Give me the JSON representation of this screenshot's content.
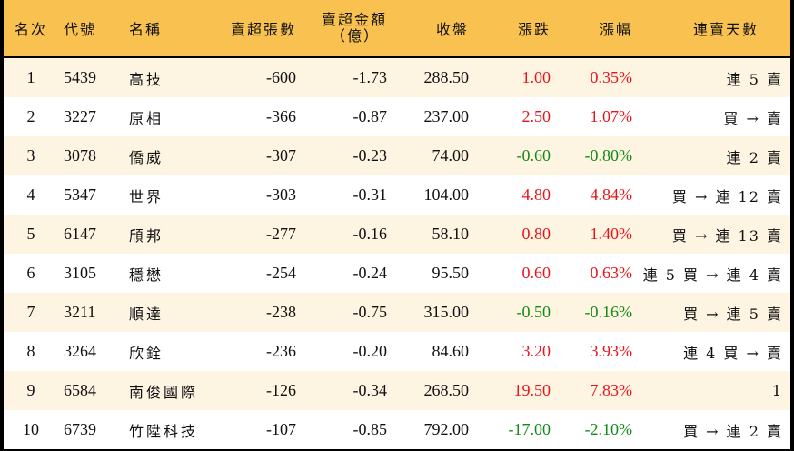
{
  "colors": {
    "header_bg": "#F8C150",
    "row_odd_bg": "#FEF4E2",
    "row_even_bg": "#FFFFFF",
    "up": "#E8141B",
    "down": "#138A17",
    "border": "#000000"
  },
  "header": {
    "rank": "名次",
    "code": "代號",
    "name": "名稱",
    "net_sell_volume": "賣超張數",
    "net_sell_amount_line1": "賣超金額",
    "net_sell_amount_line2": "（億）",
    "close": "收盤",
    "change": "漲跌",
    "change_pct": "漲幅",
    "streak": "連賣天數"
  },
  "rows": [
    {
      "rank": "1",
      "code": "5439",
      "name": "高技",
      "volume": "-600",
      "amount": "-1.73",
      "close": "288.50",
      "change": "1.00",
      "change_pct": "0.35%",
      "dir": "up",
      "streak": "連 5 賣"
    },
    {
      "rank": "2",
      "code": "3227",
      "name": "原相",
      "volume": "-366",
      "amount": "-0.87",
      "close": "237.00",
      "change": "2.50",
      "change_pct": "1.07%",
      "dir": "up",
      "streak": "買 → 賣"
    },
    {
      "rank": "3",
      "code": "3078",
      "name": "僑威",
      "volume": "-307",
      "amount": "-0.23",
      "close": "74.00",
      "change": "-0.60",
      "change_pct": "-0.80%",
      "dir": "down",
      "streak": "連 2 賣"
    },
    {
      "rank": "4",
      "code": "5347",
      "name": "世界",
      "volume": "-303",
      "amount": "-0.31",
      "close": "104.00",
      "change": "4.80",
      "change_pct": "4.84%",
      "dir": "up",
      "streak": "買 → 連 12 賣"
    },
    {
      "rank": "5",
      "code": "6147",
      "name": "頎邦",
      "volume": "-277",
      "amount": "-0.16",
      "close": "58.10",
      "change": "0.80",
      "change_pct": "1.40%",
      "dir": "up",
      "streak": "買 → 連 13 賣"
    },
    {
      "rank": "6",
      "code": "3105",
      "name": "穩懋",
      "volume": "-254",
      "amount": "-0.24",
      "close": "95.50",
      "change": "0.60",
      "change_pct": "0.63%",
      "dir": "up",
      "streak": "連 5 買 → 連 4 賣"
    },
    {
      "rank": "7",
      "code": "3211",
      "name": "順達",
      "volume": "-238",
      "amount": "-0.75",
      "close": "315.00",
      "change": "-0.50",
      "change_pct": "-0.16%",
      "dir": "down",
      "streak": "買 → 連 5 賣"
    },
    {
      "rank": "8",
      "code": "3264",
      "name": "欣銓",
      "volume": "-236",
      "amount": "-0.20",
      "close": "84.60",
      "change": "3.20",
      "change_pct": "3.93%",
      "dir": "up",
      "streak": "連 4 買 → 賣"
    },
    {
      "rank": "9",
      "code": "6584",
      "name": "南俊國際",
      "volume": "-126",
      "amount": "-0.34",
      "close": "268.50",
      "change": "19.50",
      "change_pct": "7.83%",
      "dir": "up",
      "streak": "1"
    },
    {
      "rank": "10",
      "code": "6739",
      "name": "竹陞科技",
      "volume": "-107",
      "amount": "-0.85",
      "close": "792.00",
      "change": "-17.00",
      "change_pct": "-2.10%",
      "dir": "down",
      "streak": "買 → 連 2 賣"
    }
  ]
}
